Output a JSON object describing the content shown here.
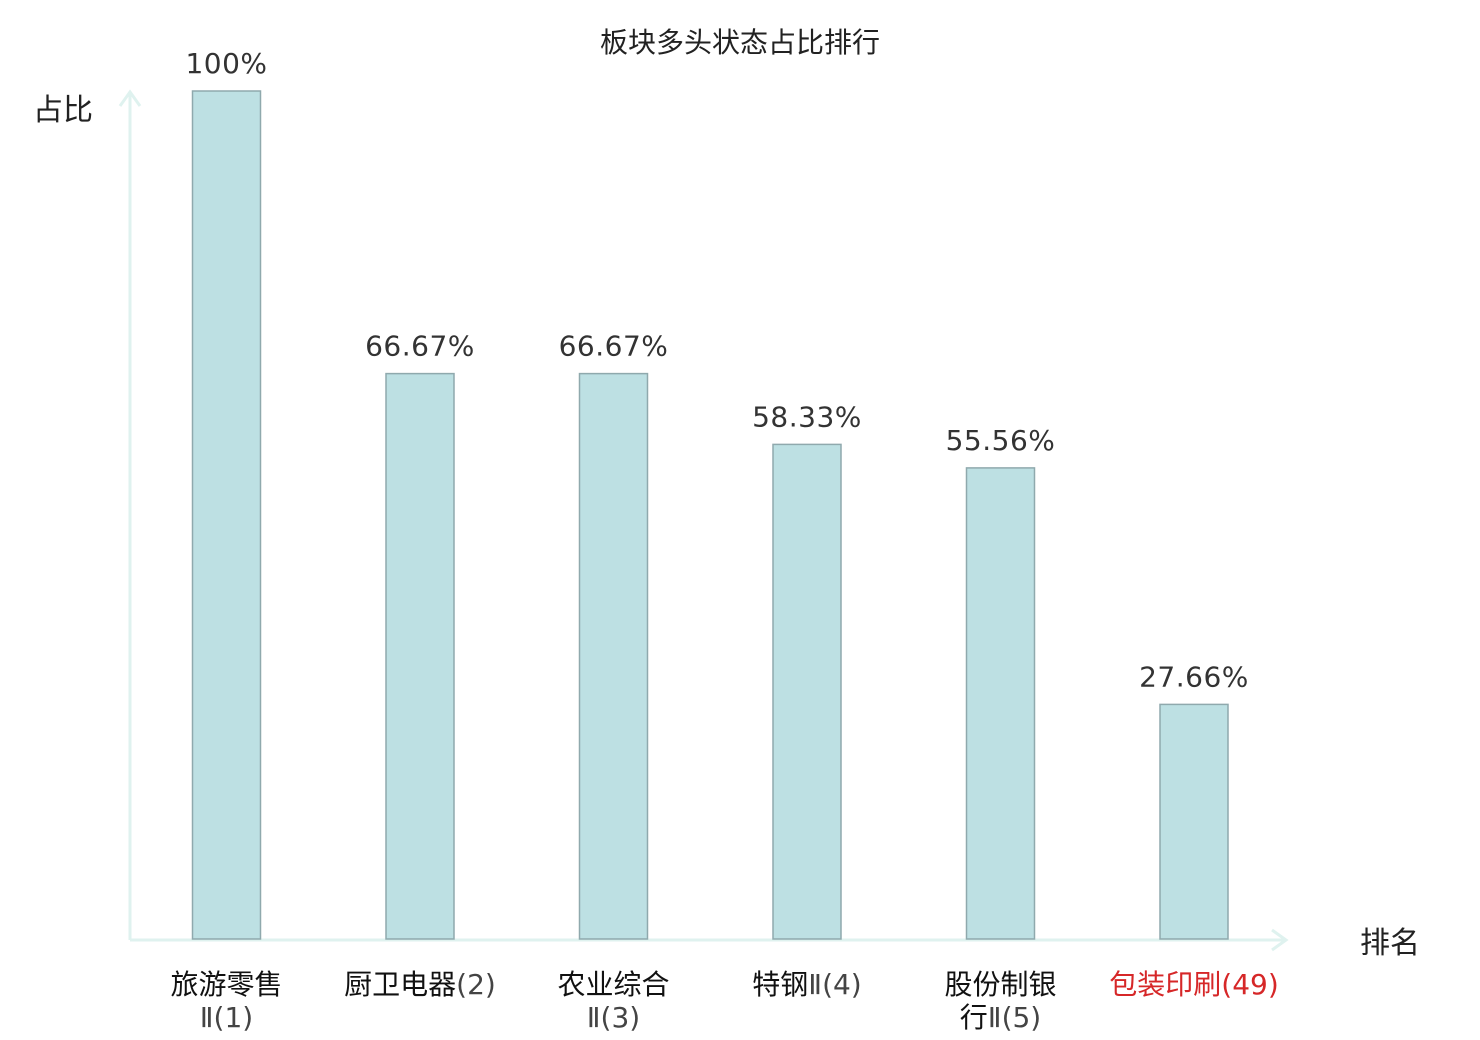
{
  "chart_data": {
    "type": "bar",
    "title": "板块多头状态占比排行",
    "xlabel": "排名",
    "ylabel": "占比",
    "ylim": [
      0,
      100
    ],
    "grid": false,
    "categories": [
      {
        "lines": [
          {
            "name": "旅游零售",
            "suffix": ""
          },
          {
            "name": "",
            "suffix": "Ⅱ(1)"
          }
        ],
        "highlight": false
      },
      {
        "lines": [
          {
            "name": "厨卫电器",
            "suffix": "(2)"
          }
        ],
        "highlight": false
      },
      {
        "lines": [
          {
            "name": "农业综合",
            "suffix": ""
          },
          {
            "name": "",
            "suffix": "Ⅱ(3)"
          }
        ],
        "highlight": false
      },
      {
        "lines": [
          {
            "name": "特钢",
            "suffix": "Ⅱ(4)"
          }
        ],
        "highlight": false
      },
      {
        "lines": [
          {
            "name": "股份制银",
            "suffix": ""
          },
          {
            "name": "行",
            "suffix": "Ⅱ(5)"
          }
        ],
        "highlight": false
      },
      {
        "lines": [
          {
            "name": "包装印刷",
            "suffix": "(49)"
          }
        ],
        "highlight": true
      }
    ],
    "values": [
      100,
      66.67,
      66.67,
      58.33,
      55.56,
      27.66
    ],
    "value_labels": [
      "100%",
      "66.67%",
      "66.67%",
      "58.33%",
      "55.56%",
      "27.66%"
    ],
    "colors": {
      "bar_fill": "#bde0e3",
      "bar_stroke": "#8fa9ad",
      "axis": "#dff2ef",
      "highlight_text": "#d62728"
    }
  }
}
